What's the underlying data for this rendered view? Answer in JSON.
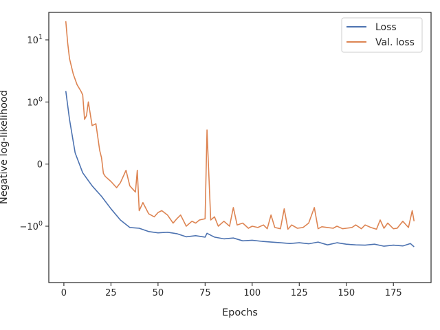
{
  "chart_data": {
    "type": "line",
    "title": "",
    "xlabel": "Epochs",
    "ylabel": "Negative log-likelihood",
    "yscale": "symlog",
    "xlim": [
      -8,
      195
    ],
    "x_ticks": [
      0,
      25,
      50,
      75,
      100,
      125,
      150,
      175
    ],
    "y_ticks": [
      {
        "value": 10,
        "label_base": "10",
        "label_exp": "1"
      },
      {
        "value": 1,
        "label_base": "10",
        "label_exp": "0"
      },
      {
        "value": 0,
        "label_base": "0",
        "label_exp": ""
      },
      {
        "value": -1,
        "label_base": "−10",
        "label_exp": "0"
      }
    ],
    "legend": {
      "position": "top-right",
      "entries": [
        "Loss",
        "Val. loss"
      ]
    },
    "colors": {
      "loss": "#4c72b0",
      "val_loss": "#dd8452",
      "axis": "#262626"
    },
    "series": [
      {
        "name": "Loss",
        "x": [
          1,
          3,
          6,
          10,
          15,
          20,
          25,
          30,
          35,
          40,
          45,
          50,
          55,
          60,
          65,
          70,
          75,
          76,
          80,
          85,
          90,
          95,
          100,
          105,
          110,
          115,
          120,
          125,
          130,
          135,
          140,
          145,
          150,
          155,
          160,
          165,
          170,
          175,
          180,
          184,
          186
        ],
        "values": [
          1.5,
          0.72,
          0.18,
          -0.14,
          -0.35,
          -0.52,
          -0.72,
          -0.9,
          -1.05,
          -1.08,
          -1.22,
          -1.28,
          -1.25,
          -1.32,
          -1.48,
          -1.42,
          -1.5,
          -1.3,
          -1.5,
          -1.6,
          -1.55,
          -1.72,
          -1.68,
          -1.75,
          -1.8,
          -1.85,
          -1.9,
          -1.85,
          -1.92,
          -1.8,
          -2.0,
          -1.85,
          -1.95,
          -2.0,
          -2.02,
          -1.95,
          -2.1,
          -2.02,
          -2.08,
          -1.9,
          -2.15
        ]
      },
      {
        "name": "Val. loss",
        "x": [
          1,
          2,
          3,
          5,
          7,
          9,
          10,
          11,
          12,
          13,
          15,
          17,
          19,
          20,
          21,
          22,
          25,
          28,
          30,
          33,
          35,
          38,
          39,
          40,
          42,
          45,
          48,
          50,
          52,
          55,
          58,
          60,
          62,
          65,
          68,
          70,
          72,
          75,
          76,
          78,
          80,
          82,
          85,
          88,
          90,
          92,
          95,
          98,
          100,
          103,
          106,
          108,
          110,
          112,
          115,
          117,
          119,
          121,
          124,
          127,
          130,
          133,
          135,
          137,
          140,
          143,
          145,
          148,
          150,
          153,
          155,
          158,
          160,
          163,
          166,
          168,
          170,
          172,
          175,
          177,
          180,
          183,
          185,
          186
        ],
        "values": [
          20,
          9,
          5,
          2.8,
          1.9,
          1.5,
          1.3,
          0.72,
          0.78,
          1.0,
          0.62,
          0.65,
          0.22,
          0.1,
          -0.15,
          -0.2,
          -0.28,
          -0.38,
          -0.3,
          -0.1,
          -0.35,
          -0.45,
          -0.1,
          -0.75,
          -0.62,
          -0.8,
          -0.85,
          -0.78,
          -0.75,
          -0.82,
          -0.95,
          -0.88,
          -0.82,
          -1.0,
          -0.92,
          -0.95,
          -0.9,
          -0.88,
          0.55,
          -0.9,
          -0.85,
          -1.0,
          -0.92,
          -1.0,
          -0.7,
          -0.98,
          -0.95,
          -1.08,
          -1.0,
          -1.05,
          -0.98,
          -1.1,
          -0.82,
          -1.05,
          -1.1,
          -0.72,
          -1.12,
          -0.98,
          -1.08,
          -1.05,
          -0.95,
          -0.7,
          -1.1,
          -1.02,
          -1.05,
          -1.08,
          -1.0,
          -1.1,
          -1.08,
          -1.05,
          -0.98,
          -1.1,
          -0.98,
          -1.05,
          -1.12,
          -0.9,
          -1.08,
          -0.95,
          -1.1,
          -1.08,
          -0.92,
          -1.05,
          -0.75,
          -0.92
        ]
      }
    ]
  }
}
